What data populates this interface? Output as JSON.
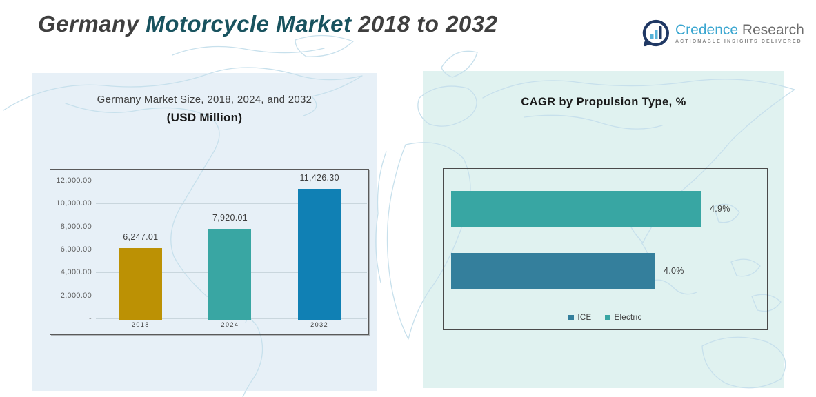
{
  "page_title": {
    "prefix": "Germany ",
    "highlight": "Motorcycle Market",
    "suffix": " 2018 to 2032"
  },
  "logo": {
    "name_primary": "Credence",
    "name_secondary": "Research",
    "tagline": "Actionable Insights Delivered",
    "brand_color": "#3aa6d0",
    "ring_color": "#203864"
  },
  "colors": {
    "title_dark": "#3f3f3f",
    "title_teal": "#19535f",
    "left_panel_bg": "#e7f0f7",
    "right_panel_bg": "#e0f2f0",
    "map_line": "#c7e0ec",
    "gridline": "#c9d6dd"
  },
  "chart_data": [
    {
      "type": "bar",
      "title_line1": "Germany Market Size, 2018, 2024, and 2032",
      "title_line2": "(USD Million)",
      "categories": [
        "2018",
        "2024",
        "2032"
      ],
      "values": [
        6247.01,
        7920.01,
        11426.3
      ],
      "value_labels": [
        "6,247.01",
        "7,920.01",
        "11,426.30"
      ],
      "bar_colors": [
        "#bc9104",
        "#39a6a3",
        "#1080b4"
      ],
      "ylim": [
        0,
        12000
      ],
      "ytick_interval": 2000,
      "ytick_labels_top_to_bottom": [
        "12,000.00",
        "10,000.00",
        "8,000.00",
        "6,000.00",
        "4,000.00",
        "2,000.00",
        "-"
      ],
      "grid": true,
      "legend_position": "none"
    },
    {
      "type": "bar-horizontal",
      "title": "CAGR by Propulsion Type, %",
      "series": [
        {
          "name": "ICE",
          "value": 4.0,
          "label": "4.0%",
          "color": "#347f9c"
        },
        {
          "name": "Electric",
          "value": 4.9,
          "label": "4.9%",
          "color": "#38a6a3"
        }
      ],
      "display_order_top_to_bottom": [
        "Electric",
        "ICE"
      ],
      "xlim": [
        0,
        6
      ],
      "grid": false,
      "legend": [
        "ICE",
        "Electric"
      ],
      "legend_position": "bottom"
    }
  ]
}
